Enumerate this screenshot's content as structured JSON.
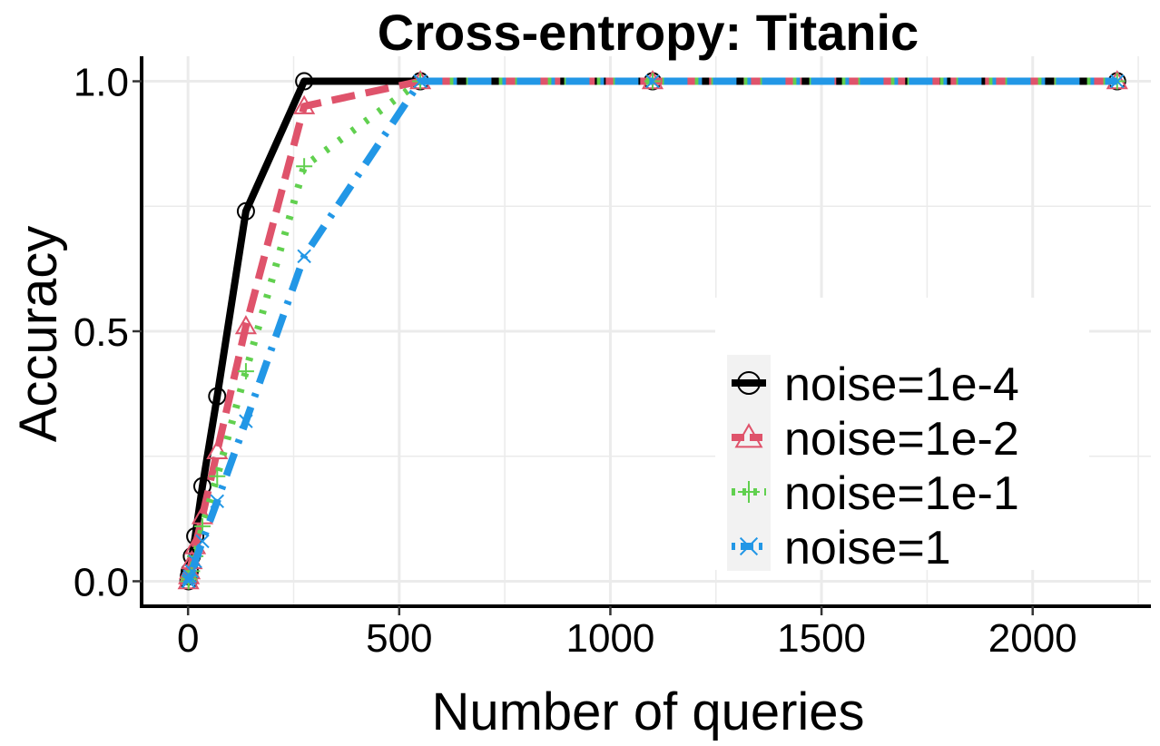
{
  "chart_data": {
    "type": "line",
    "title": "Cross-entropy: Titanic",
    "xlabel": "Number of queries",
    "ylabel": "Accuracy",
    "xlim": [
      -110,
      2280
    ],
    "ylim": [
      -0.05,
      1.05
    ],
    "xticks": [
      0,
      500,
      1000,
      1500,
      2000
    ],
    "yticks": [
      0.0,
      0.5,
      1.0
    ],
    "xtick_labels": [
      "0",
      "500",
      "1000",
      "1500",
      "2000"
    ],
    "ytick_labels": [
      "0.0",
      "0.5",
      "1.0"
    ],
    "x": [
      1,
      2,
      4,
      9,
      17,
      34,
      69,
      137,
      275,
      550,
      1100,
      2200
    ],
    "grid": true,
    "legend_position": "bottom-right",
    "series": [
      {
        "name": "noise=1e-4",
        "color": "#000000",
        "dash": "solid",
        "marker": "circle",
        "values": [
          0.0,
          0.01,
          0.02,
          0.05,
          0.09,
          0.19,
          0.37,
          0.74,
          1.0,
          1.0,
          1.0,
          1.0
        ]
      },
      {
        "name": "noise=1e-2",
        "color": "#DF536B",
        "dash": "dashed",
        "marker": "triangle",
        "values": [
          0.0,
          0.01,
          0.02,
          0.04,
          0.07,
          0.13,
          0.26,
          0.51,
          0.95,
          1.0,
          1.0,
          1.0
        ]
      },
      {
        "name": "noise=1e-1",
        "color": "#61D04F",
        "dash": "dotted",
        "marker": "plus",
        "values": [
          0.0,
          0.005,
          0.01,
          0.02,
          0.05,
          0.11,
          0.21,
          0.42,
          0.83,
          1.0,
          1.0,
          1.0
        ]
      },
      {
        "name": "noise=1",
        "color": "#2297E6",
        "dash": "dotdash",
        "marker": "cross",
        "values": [
          0.0,
          0.005,
          0.01,
          0.02,
          0.04,
          0.08,
          0.16,
          0.32,
          0.65,
          1.0,
          1.0,
          1.0
        ]
      }
    ]
  }
}
